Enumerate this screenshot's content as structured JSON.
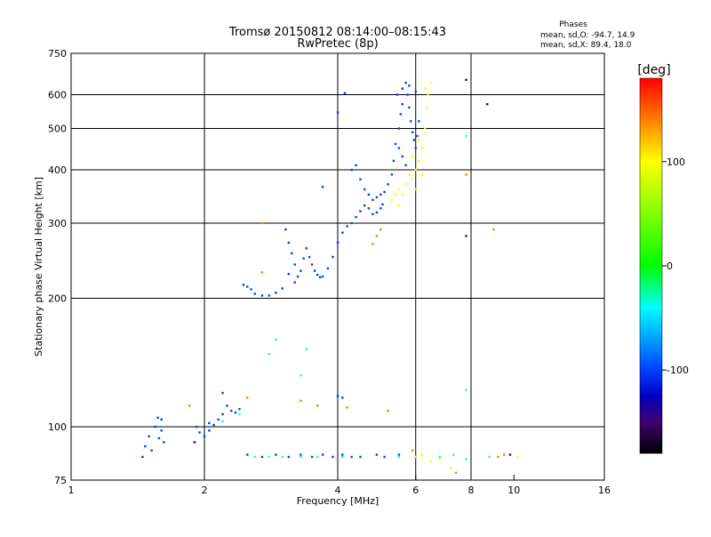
{
  "chart_data": {
    "type": "scatter",
    "title": "Tromsø 20150812 08:14:00–08:15:43",
    "subtitle": "RwPretec (8p)",
    "xlabel": "Frequency [MHz]",
    "ylabel": "Stationary phase Virtual Height [km]",
    "xscale": "log",
    "yscale": "log",
    "xlim": [
      1,
      16
    ],
    "ylim": [
      75,
      750
    ],
    "x_ticks": [
      1,
      2,
      4,
      6,
      8,
      10,
      16
    ],
    "y_ticks": [
      75,
      100,
      200,
      300,
      400,
      500,
      600,
      750
    ],
    "grid_x": [
      2,
      4,
      6,
      8
    ],
    "grid_y": [
      100,
      200,
      300,
      400,
      500,
      600
    ],
    "grid": true,
    "phase_header": "Phases",
    "phase_stats": [
      "mean, sd,O: -94.7, 14.9",
      "mean, sd,X:  89.4, 18.0"
    ],
    "colorbar": {
      "label": "[deg]",
      "range": [
        -180,
        180
      ],
      "ticks": [
        100,
        0,
        -100
      ],
      "colors": [
        "#ff0000",
        "#ff8000",
        "#ffff00",
        "#00ff00",
        "#00ffff",
        "#0040ff",
        "#0000c0",
        "#400070",
        "#000000"
      ]
    },
    "series": [
      {
        "phase_deg": -100,
        "points": [
          [
            1.45,
            85
          ],
          [
            1.47,
            90
          ],
          [
            1.5,
            95
          ],
          [
            1.52,
            88
          ],
          [
            1.55,
            100
          ],
          [
            1.57,
            105
          ],
          [
            1.6,
            98
          ],
          [
            1.62,
            92
          ],
          [
            1.6,
            104
          ],
          [
            1.58,
            94
          ],
          [
            1.92,
            100
          ],
          [
            1.95,
            97
          ],
          [
            2.0,
            95
          ],
          [
            2.05,
            98
          ],
          [
            2.1,
            101
          ],
          [
            2.15,
            104
          ],
          [
            2.2,
            107
          ],
          [
            2.25,
            112
          ],
          [
            2.3,
            109
          ],
          [
            2.35,
            108
          ],
          [
            2.4,
            110
          ],
          [
            2.05,
            102
          ],
          [
            2.2,
            120
          ],
          [
            2.45,
            215
          ],
          [
            2.5,
            213
          ],
          [
            2.55,
            210
          ],
          [
            2.6,
            205
          ],
          [
            2.7,
            203
          ],
          [
            2.8,
            203
          ],
          [
            2.9,
            206
          ],
          [
            3.0,
            211
          ],
          [
            3.05,
            290
          ],
          [
            3.1,
            270
          ],
          [
            3.15,
            255
          ],
          [
            3.2,
            240
          ],
          [
            3.25,
            225
          ],
          [
            3.3,
            232
          ],
          [
            3.35,
            248
          ],
          [
            3.4,
            262
          ],
          [
            3.45,
            250
          ],
          [
            3.5,
            240
          ],
          [
            3.55,
            232
          ],
          [
            3.6,
            227
          ],
          [
            3.65,
            224
          ],
          [
            3.1,
            228
          ],
          [
            3.2,
            218
          ],
          [
            3.7,
            225
          ],
          [
            3.8,
            235
          ],
          [
            3.9,
            250
          ],
          [
            4.0,
            270
          ],
          [
            4.1,
            285
          ],
          [
            4.2,
            295
          ],
          [
            4.3,
            300
          ],
          [
            4.4,
            310
          ],
          [
            4.5,
            320
          ],
          [
            4.6,
            330
          ],
          [
            4.7,
            325
          ],
          [
            4.8,
            315
          ],
          [
            4.9,
            318
          ],
          [
            5.0,
            325
          ],
          [
            5.05,
            332
          ],
          [
            4.3,
            400
          ],
          [
            4.4,
            410
          ],
          [
            4.5,
            380
          ],
          [
            4.6,
            360
          ],
          [
            4.7,
            350
          ],
          [
            4.8,
            340
          ],
          [
            4.9,
            345
          ],
          [
            5.0,
            350
          ],
          [
            5.1,
            355
          ],
          [
            5.2,
            370
          ],
          [
            5.3,
            390
          ],
          [
            5.35,
            420
          ],
          [
            5.4,
            460
          ],
          [
            5.5,
            500
          ],
          [
            5.55,
            540
          ],
          [
            5.6,
            570
          ],
          [
            5.45,
            600
          ],
          [
            5.6,
            620
          ],
          [
            5.7,
            640
          ],
          [
            5.75,
            600
          ],
          [
            5.8,
            560
          ],
          [
            5.85,
            520
          ],
          [
            5.9,
            490
          ],
          [
            5.95,
            470
          ],
          [
            6.0,
            450
          ],
          [
            6.05,
            480
          ],
          [
            6.1,
            520
          ],
          [
            5.6,
            430
          ],
          [
            5.7,
            410
          ],
          [
            5.5,
            450
          ],
          [
            5.8,
            630
          ],
          [
            6.0,
            610
          ],
          [
            4.0,
            545
          ],
          [
            4.15,
            605
          ],
          [
            3.7,
            365
          ],
          [
            2.5,
            86
          ],
          [
            2.7,
            85
          ],
          [
            2.9,
            86
          ],
          [
            3.1,
            85
          ],
          [
            3.3,
            86
          ],
          [
            3.5,
            85
          ],
          [
            3.7,
            86
          ],
          [
            3.9,
            85
          ],
          [
            4.1,
            86
          ],
          [
            4.3,
            85
          ],
          [
            4.5,
            85
          ],
          [
            4.9,
            86
          ],
          [
            5.1,
            85
          ],
          [
            5.5,
            86
          ],
          [
            4.0,
            118
          ],
          [
            4.1,
            117
          ]
        ]
      },
      {
        "phase_deg": -40,
        "points": [
          [
            2.6,
            85
          ],
          [
            2.8,
            85
          ],
          [
            3.0,
            85
          ],
          [
            3.3,
            85
          ],
          [
            3.6,
            85
          ],
          [
            4.1,
            85
          ],
          [
            5.5,
            85
          ],
          [
            6.0,
            85
          ],
          [
            6.8,
            85
          ],
          [
            7.3,
            86
          ],
          [
            7.8,
            84
          ],
          [
            8.8,
            85
          ],
          [
            9.5,
            86
          ],
          [
            2.9,
            160
          ],
          [
            3.3,
            132
          ],
          [
            3.4,
            152
          ],
          [
            2.2,
            103
          ],
          [
            2.4,
            107
          ],
          [
            7.8,
            480
          ],
          [
            7.8,
            122
          ],
          [
            2.8,
            148
          ]
        ]
      },
      {
        "phase_deg": 100,
        "points": [
          [
            5.3,
            340
          ],
          [
            5.4,
            350
          ],
          [
            5.5,
            360
          ],
          [
            5.6,
            350
          ],
          [
            5.7,
            370
          ],
          [
            5.8,
            390
          ],
          [
            5.9,
            380
          ],
          [
            6.0,
            400
          ],
          [
            6.1,
            420
          ],
          [
            6.2,
            450
          ],
          [
            6.3,
            500
          ],
          [
            6.35,
            560
          ],
          [
            6.4,
            600
          ],
          [
            6.5,
            640
          ],
          [
            6.2,
            390
          ],
          [
            5.9,
            430
          ],
          [
            6.1,
            470
          ],
          [
            6.0,
            360
          ],
          [
            5.5,
            330
          ],
          [
            6.3,
            620
          ],
          [
            6.0,
            85
          ],
          [
            6.2,
            86
          ],
          [
            6.5,
            83
          ],
          [
            6.8,
            84
          ],
          [
            7.2,
            80
          ],
          [
            10.2,
            85
          ]
        ]
      },
      {
        "phase_deg": 140,
        "points": [
          [
            4.8,
            268
          ],
          [
            4.9,
            280
          ],
          [
            5.0,
            290
          ],
          [
            2.7,
            300
          ],
          [
            2.7,
            230
          ],
          [
            3.3,
            115
          ],
          [
            3.6,
            112
          ],
          [
            4.2,
            111
          ],
          [
            5.2,
            109
          ],
          [
            1.85,
            112
          ],
          [
            5.9,
            88
          ],
          [
            7.4,
            78
          ],
          [
            9.2,
            85
          ],
          [
            9.5,
            86
          ],
          [
            7.8,
            390
          ],
          [
            9.0,
            290
          ],
          [
            2.5,
            117
          ]
        ]
      },
      {
        "phase_deg": -150,
        "points": [
          [
            7.8,
            650
          ],
          [
            8.7,
            570
          ],
          [
            7.8,
            280
          ],
          [
            1.9,
            92
          ],
          [
            9.8,
            86
          ]
        ]
      }
    ]
  }
}
